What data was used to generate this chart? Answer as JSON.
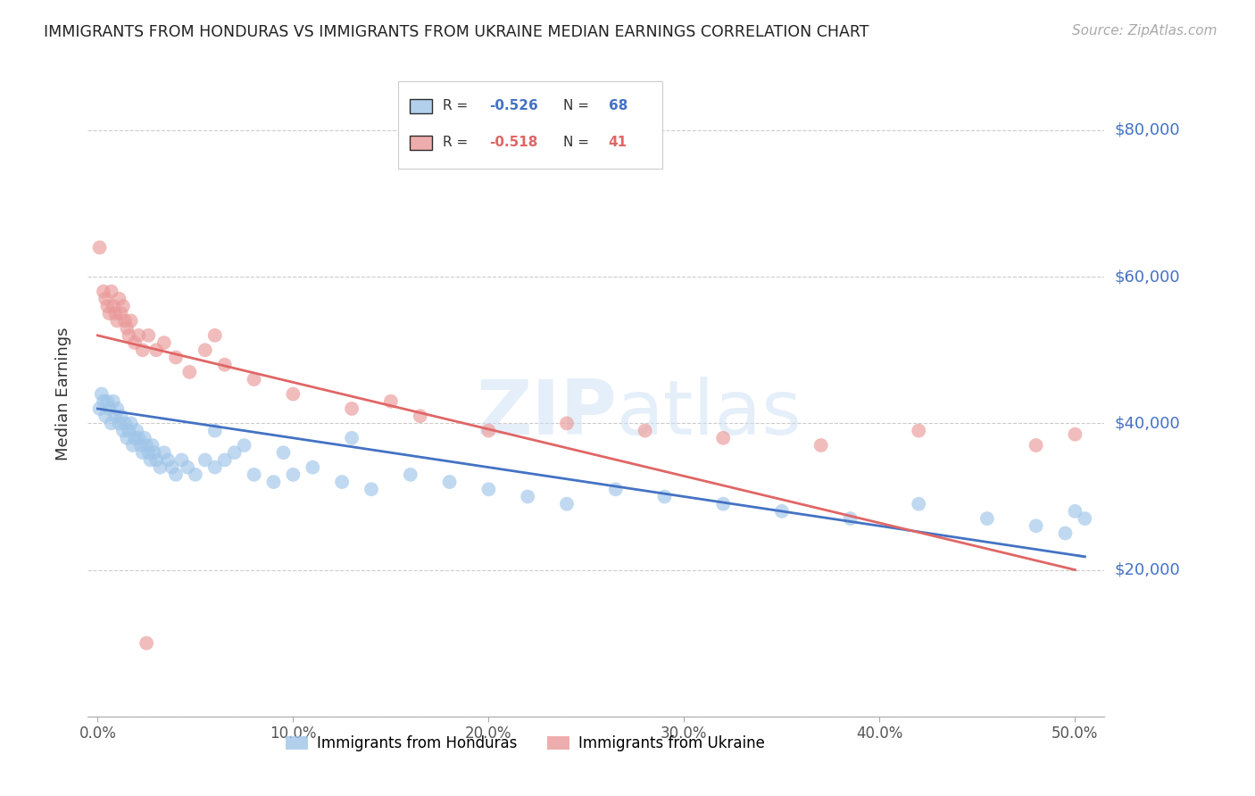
{
  "title": "IMMIGRANTS FROM HONDURAS VS IMMIGRANTS FROM UKRAINE MEDIAN EARNINGS CORRELATION CHART",
  "source": "Source: ZipAtlas.com",
  "ylabel": "Median Earnings",
  "xlabel_ticks": [
    "0.0%",
    "10.0%",
    "20.0%",
    "30.0%",
    "40.0%",
    "50.0%"
  ],
  "xlabel_vals": [
    0.0,
    0.1,
    0.2,
    0.3,
    0.4,
    0.5
  ],
  "ytick_labels": [
    "$20,000",
    "$40,000",
    "$60,000",
    "$80,000"
  ],
  "ytick_vals": [
    20000,
    40000,
    60000,
    80000
  ],
  "ylim": [
    0,
    88000
  ],
  "xlim": [
    -0.005,
    0.515
  ],
  "color_honduras": "#9fc5e8",
  "color_ukraine": "#ea9999",
  "color_trendline_honduras": "#4472c4",
  "color_trendline_ukraine": "#e06666",
  "color_axis_labels": "#4472c4",
  "background_color": "#ffffff",
  "grid_color": "#cccccc",
  "honduras_x": [
    0.001,
    0.002,
    0.003,
    0.004,
    0.005,
    0.006,
    0.007,
    0.008,
    0.009,
    0.01,
    0.011,
    0.012,
    0.013,
    0.014,
    0.015,
    0.016,
    0.017,
    0.018,
    0.019,
    0.02,
    0.021,
    0.022,
    0.023,
    0.024,
    0.025,
    0.026,
    0.027,
    0.028,
    0.029,
    0.03,
    0.032,
    0.034,
    0.036,
    0.038,
    0.04,
    0.043,
    0.046,
    0.05,
    0.055,
    0.06,
    0.065,
    0.07,
    0.08,
    0.09,
    0.1,
    0.11,
    0.125,
    0.14,
    0.16,
    0.18,
    0.2,
    0.22,
    0.24,
    0.265,
    0.29,
    0.32,
    0.35,
    0.385,
    0.42,
    0.455,
    0.48,
    0.495,
    0.5,
    0.505,
    0.06,
    0.075,
    0.095,
    0.13
  ],
  "honduras_y": [
    42000,
    44000,
    43000,
    41000,
    43000,
    42000,
    40000,
    43000,
    41000,
    42000,
    40000,
    41000,
    39000,
    40000,
    38000,
    39000,
    40000,
    37000,
    38000,
    39000,
    38000,
    37000,
    36000,
    38000,
    37000,
    36000,
    35000,
    37000,
    36000,
    35000,
    34000,
    36000,
    35000,
    34000,
    33000,
    35000,
    34000,
    33000,
    35000,
    34000,
    35000,
    36000,
    33000,
    32000,
    33000,
    34000,
    32000,
    31000,
    33000,
    32000,
    31000,
    30000,
    29000,
    31000,
    30000,
    29000,
    28000,
    27000,
    29000,
    27000,
    26000,
    25000,
    28000,
    27000,
    39000,
    37000,
    36000,
    38000
  ],
  "ukraine_x": [
    0.001,
    0.003,
    0.004,
    0.005,
    0.006,
    0.007,
    0.008,
    0.009,
    0.01,
    0.011,
    0.012,
    0.013,
    0.014,
    0.015,
    0.016,
    0.017,
    0.019,
    0.021,
    0.023,
    0.026,
    0.03,
    0.034,
    0.04,
    0.047,
    0.055,
    0.065,
    0.08,
    0.1,
    0.13,
    0.165,
    0.2,
    0.24,
    0.28,
    0.32,
    0.37,
    0.42,
    0.48,
    0.5,
    0.15,
    0.06,
    0.025
  ],
  "ukraine_y": [
    64000,
    58000,
    57000,
    56000,
    55000,
    58000,
    56000,
    55000,
    54000,
    57000,
    55000,
    56000,
    54000,
    53000,
    52000,
    54000,
    51000,
    52000,
    50000,
    52000,
    50000,
    51000,
    49000,
    47000,
    50000,
    48000,
    46000,
    44000,
    42000,
    41000,
    39000,
    40000,
    39000,
    38000,
    37000,
    39000,
    37000,
    38500,
    43000,
    52000,
    10000
  ],
  "trendline_honduras_x0": 0.0,
  "trendline_honduras_y0": 42000,
  "trendline_honduras_x1": 0.5,
  "trendline_honduras_y1": 22000,
  "trendline_ukraine_x0": 0.0,
  "trendline_ukraine_y0": 52000,
  "trendline_ukraine_x1": 0.5,
  "trendline_ukraine_y1": 20000
}
